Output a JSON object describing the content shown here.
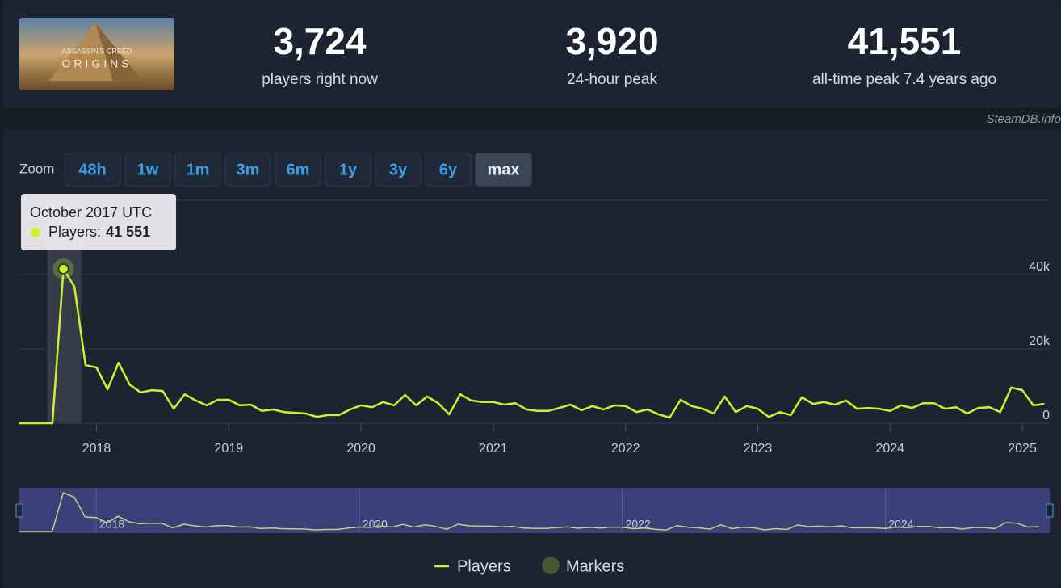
{
  "header": {
    "game_logo": [
      "ASSASSIN'S CREED",
      "ORIGINS"
    ],
    "stats": [
      {
        "value": "3,724",
        "label": "players right now"
      },
      {
        "value": "3,920",
        "label": "24-hour peak"
      },
      {
        "value": "41,551",
        "label": "all-time peak 7.4 years ago"
      }
    ]
  },
  "watermark": "SteamDB.info",
  "zoom": {
    "label": "Zoom",
    "buttons": [
      {
        "label": "48h"
      },
      {
        "label": "1w"
      },
      {
        "label": "1m"
      },
      {
        "label": "3m"
      },
      {
        "label": "6m"
      },
      {
        "label": "1y"
      },
      {
        "label": "3y"
      },
      {
        "label": "6y"
      },
      {
        "label": "max",
        "active": true
      }
    ]
  },
  "chart_data": {
    "type": "line",
    "x": [
      "2017-06",
      "2017-07",
      "2017-08",
      "2017-09",
      "2017-10",
      "2017-11",
      "2017-12",
      "2018-01",
      "2018-02",
      "2018-03",
      "2018-04",
      "2018-05",
      "2018-06",
      "2018-07",
      "2018-08",
      "2018-09",
      "2018-10",
      "2018-11",
      "2018-12",
      "2019-01",
      "2019-02",
      "2019-03",
      "2019-04",
      "2019-05",
      "2019-06",
      "2019-07",
      "2019-08",
      "2019-09",
      "2019-10",
      "2019-11",
      "2019-12",
      "2020-01",
      "2020-02",
      "2020-03",
      "2020-04",
      "2020-05",
      "2020-06",
      "2020-07",
      "2020-08",
      "2020-09",
      "2020-10",
      "2020-11",
      "2020-12",
      "2021-01",
      "2021-02",
      "2021-03",
      "2021-04",
      "2021-05",
      "2021-06",
      "2021-07",
      "2021-08",
      "2021-09",
      "2021-10",
      "2021-11",
      "2021-12",
      "2022-01",
      "2022-02",
      "2022-03",
      "2022-04",
      "2022-05",
      "2022-06",
      "2022-07",
      "2022-08",
      "2022-09",
      "2022-10",
      "2022-11",
      "2022-12",
      "2023-01",
      "2023-02",
      "2023-03",
      "2023-04",
      "2023-05",
      "2023-06",
      "2023-07",
      "2023-08",
      "2023-09",
      "2023-10",
      "2023-11",
      "2023-12",
      "2024-01",
      "2024-02",
      "2024-03",
      "2024-04",
      "2024-05",
      "2024-06",
      "2024-07",
      "2024-08",
      "2024-09",
      "2024-10",
      "2024-11",
      "2024-12",
      "2025-01",
      "2025-02",
      "2025-03"
    ],
    "series": [
      {
        "name": "Players",
        "color": "#cdf22b",
        "values": [
          0,
          0,
          0,
          0,
          41551,
          36700,
          15600,
          15000,
          9100,
          16300,
          10400,
          8300,
          8900,
          8700,
          3900,
          7800,
          6100,
          4800,
          6300,
          6300,
          4800,
          5000,
          3300,
          3700,
          3000,
          2800,
          2600,
          1700,
          2200,
          2200,
          3700,
          4800,
          4300,
          5700,
          4800,
          7600,
          4800,
          7200,
          5400,
          2400,
          7800,
          6100,
          5700,
          5700,
          5000,
          5400,
          3700,
          3300,
          3300,
          4100,
          5000,
          3500,
          4600,
          3700,
          4800,
          4600,
          3000,
          3700,
          2400,
          1500,
          6300,
          4600,
          3900,
          2600,
          7200,
          3000,
          4600,
          3900,
          1700,
          3000,
          2200,
          7000,
          5200,
          5700,
          5000,
          6100,
          3900,
          4100,
          3900,
          3300,
          4800,
          4100,
          5400,
          5400,
          3900,
          4300,
          2600,
          4100,
          4300,
          3000,
          9600,
          8900,
          4800,
          5200
        ]
      }
    ],
    "markers_legend": {
      "name": "Markers",
      "color": "#4a5632"
    },
    "xlim": [
      "2017-06",
      "2025-04"
    ],
    "xticks": [
      {
        "value": "2018-01",
        "label": "2018"
      },
      {
        "value": "2019-01",
        "label": "2019"
      },
      {
        "value": "2020-01",
        "label": "2020"
      },
      {
        "value": "2021-01",
        "label": "2021"
      },
      {
        "value": "2022-01",
        "label": "2022"
      },
      {
        "value": "2023-01",
        "label": "2023"
      },
      {
        "value": "2024-01",
        "label": "2024"
      },
      {
        "value": "2025-01",
        "label": "2025"
      }
    ],
    "ylim": [
      0,
      60000
    ],
    "yticks": [
      0,
      {
        "value": 20000,
        "label": "20k"
      },
      {
        "value": 40000,
        "label": "40k"
      }
    ],
    "grid": true,
    "tooltip": {
      "title": "October 2017 UTC",
      "label": "Players:",
      "value_label": "41 551"
    }
  }
}
